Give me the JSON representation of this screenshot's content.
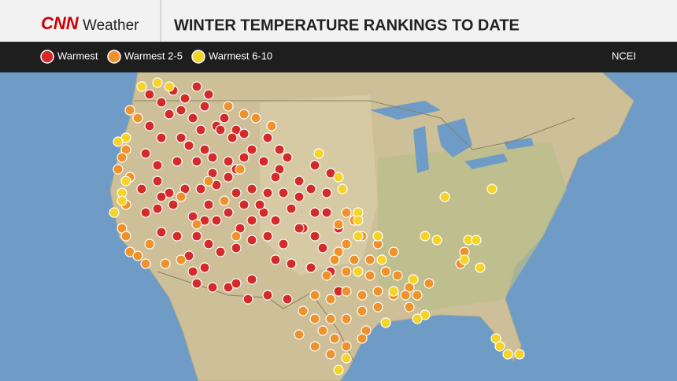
{
  "header": {
    "logo": "CNN",
    "section": "Weather",
    "title": "WINTER TEMPERATURE RANKINGS TO DATE"
  },
  "legend": {
    "items": [
      {
        "label": "Warmest",
        "color": "#d42a2a"
      },
      {
        "label": "Warmest 2-5",
        "color": "#f0922b"
      },
      {
        "label": "Warmest 6-10",
        "color": "#f5d327"
      }
    ],
    "source": "NCEI"
  }
}
